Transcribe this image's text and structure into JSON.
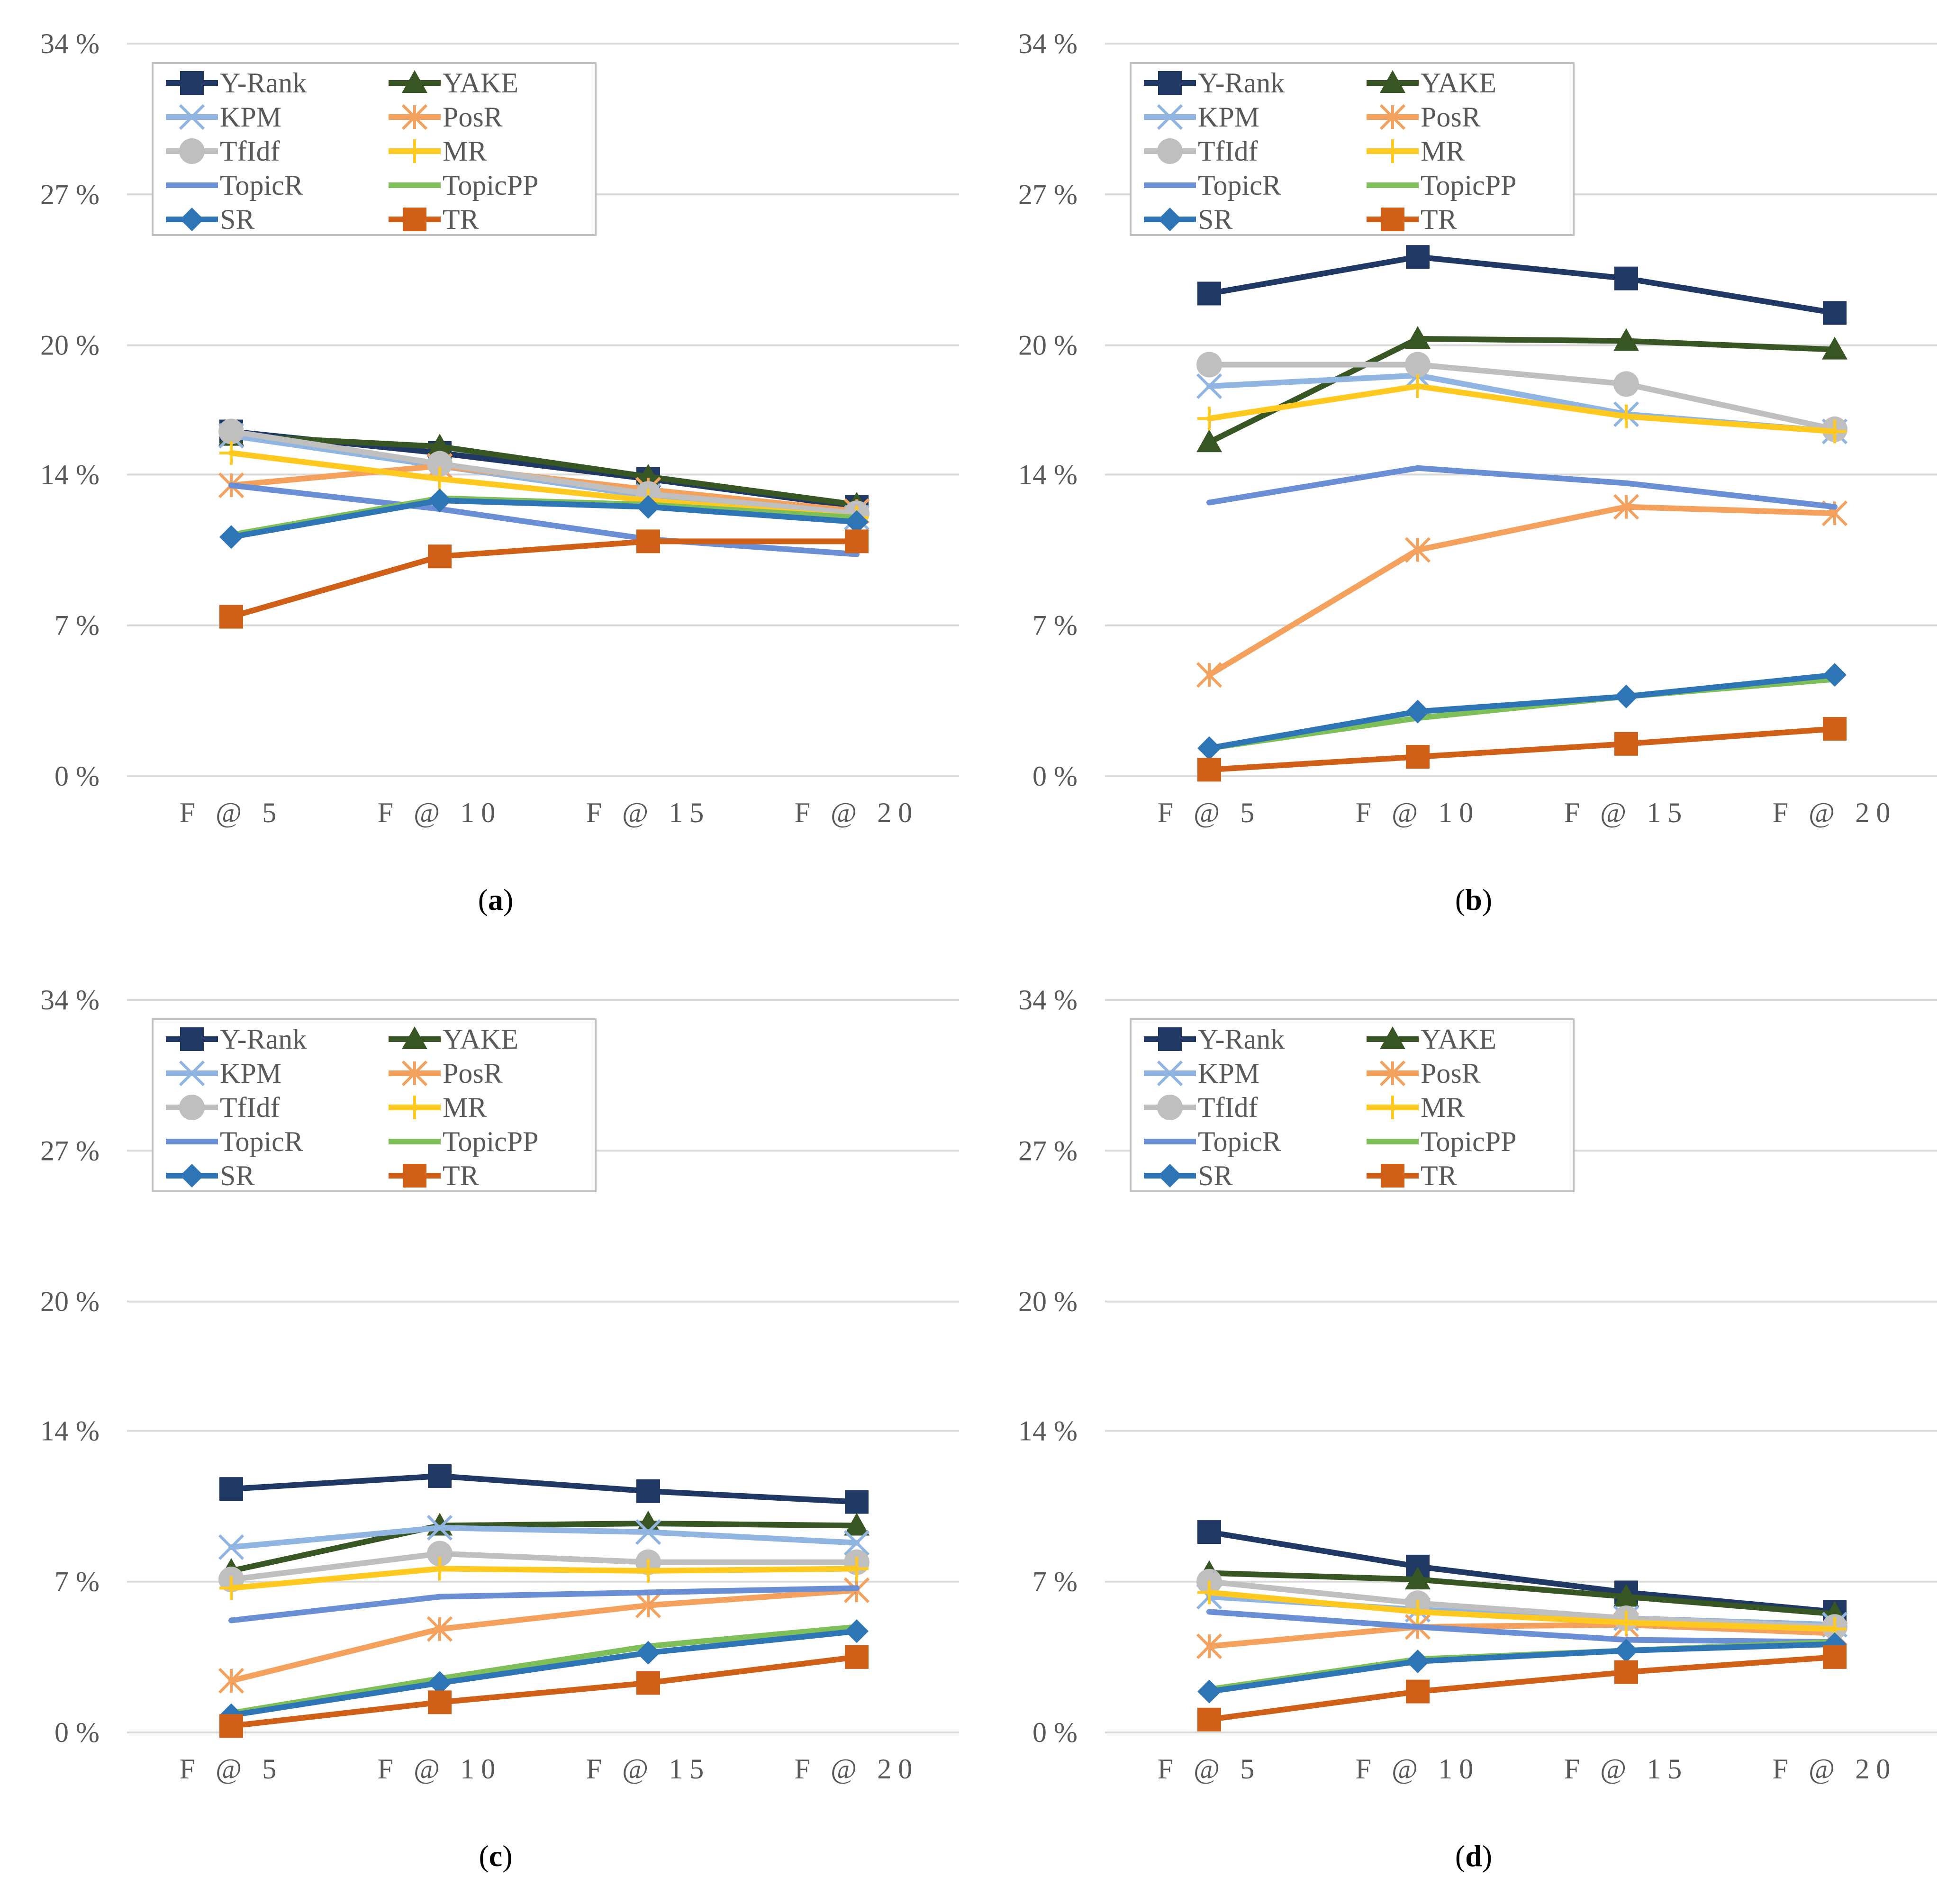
{
  "colors": {
    "Y-Rank": "#203864",
    "YAKE": "#375623",
    "KPM": "#8fb5e0",
    "PosR": "#f4a15d",
    "TfIdf": "#bfbfbf",
    "MR": "#ffc91f",
    "TopicR": "#6b8fd4",
    "TopicPP": "#7fbf5a",
    "SR": "#2e75b6",
    "TR": "#d06018",
    "grid": "#d9d9d9",
    "axis_text": "#595959"
  },
  "chart_data": [
    {
      "type": "line",
      "caption_letter": "a",
      "caption_open": "(",
      "caption_close": ")",
      "categories": [
        "F @ 5",
        "F @ 10",
        "F @ 15",
        "F @ 20"
      ],
      "ylim": [
        0,
        34
      ],
      "yticks": [
        0,
        7,
        14,
        20,
        27,
        34
      ],
      "ytick_labels": [
        "0 %",
        "7 %",
        "14 %",
        "20 %",
        "27 %",
        "34 %"
      ],
      "legend": [
        "Y-Rank",
        "YAKE",
        "KPM",
        "PosR",
        "TfIdf",
        "MR",
        "TopicR",
        "TopicPP",
        "SR",
        "TR"
      ],
      "series": [
        {
          "name": "Y-Rank",
          "marker": "square",
          "values": [
            16.0,
            15.0,
            13.8,
            12.5
          ]
        },
        {
          "name": "YAKE",
          "marker": "triangle",
          "values": [
            15.8,
            15.3,
            13.9,
            12.6
          ]
        },
        {
          "name": "KPM",
          "marker": "x",
          "values": [
            15.8,
            14.4,
            13.0,
            12.0
          ]
        },
        {
          "name": "PosR",
          "marker": "asterisk",
          "values": [
            13.5,
            14.4,
            13.3,
            12.3
          ]
        },
        {
          "name": "TfIdf",
          "marker": "circle",
          "values": [
            16.0,
            14.5,
            13.1,
            12.2
          ]
        },
        {
          "name": "MR",
          "marker": "plus",
          "values": [
            15.0,
            13.8,
            12.8,
            12.0
          ]
        },
        {
          "name": "TopicR",
          "marker": "dash",
          "values": [
            13.5,
            12.4,
            11.0,
            10.3
          ]
        },
        {
          "name": "TopicPP",
          "marker": "dash",
          "values": [
            11.2,
            12.9,
            12.6,
            12.0
          ]
        },
        {
          "name": "SR",
          "marker": "diamond",
          "values": [
            11.1,
            12.8,
            12.5,
            11.8
          ]
        },
        {
          "name": "TR",
          "marker": "square",
          "values": [
            7.4,
            10.2,
            10.9,
            10.9
          ]
        }
      ]
    },
    {
      "type": "line",
      "caption_letter": "b",
      "caption_open": "(",
      "caption_close": ")",
      "categories": [
        "F @ 5",
        "F @ 10",
        "F @ 15",
        "F @ 20"
      ],
      "ylim": [
        0,
        34
      ],
      "yticks": [
        0,
        7,
        14,
        20,
        27,
        34
      ],
      "ytick_labels": [
        "0 %",
        "7 %",
        "14 %",
        "20 %",
        "27 %",
        "34 %"
      ],
      "legend": [
        "Y-Rank",
        "YAKE",
        "KPM",
        "PosR",
        "TfIdf",
        "MR",
        "TopicR",
        "TopicPP",
        "SR",
        "TR"
      ],
      "series": [
        {
          "name": "Y-Rank",
          "marker": "square",
          "values": [
            22.4,
            24.1,
            23.1,
            21.5
          ]
        },
        {
          "name": "YAKE",
          "marker": "triangle",
          "values": [
            15.5,
            20.3,
            20.2,
            19.8
          ]
        },
        {
          "name": "KPM",
          "marker": "x",
          "values": [
            18.1,
            18.6,
            16.8,
            16.0
          ]
        },
        {
          "name": "PosR",
          "marker": "asterisk",
          "values": [
            4.7,
            10.5,
            12.5,
            12.2
          ]
        },
        {
          "name": "TfIdf",
          "marker": "circle",
          "values": [
            19.1,
            19.1,
            18.2,
            16.1
          ]
        },
        {
          "name": "MR",
          "marker": "plus",
          "values": [
            16.6,
            18.1,
            16.7,
            16.0
          ]
        },
        {
          "name": "TopicR",
          "marker": "dash",
          "values": [
            12.7,
            14.3,
            13.6,
            12.5
          ]
        },
        {
          "name": "TopicPP",
          "marker": "dash",
          "values": [
            1.3,
            2.7,
            3.7,
            4.5
          ]
        },
        {
          "name": "SR",
          "marker": "diamond",
          "values": [
            1.3,
            3.0,
            3.7,
            4.7
          ]
        },
        {
          "name": "TR",
          "marker": "square",
          "values": [
            0.3,
            0.9,
            1.5,
            2.2
          ]
        }
      ]
    },
    {
      "type": "line",
      "caption_letter": "c",
      "caption_open": "(",
      "caption_close": ")",
      "categories": [
        "F @ 5",
        "F @ 10",
        "F @ 15",
        "F @ 20"
      ],
      "ylim": [
        0,
        34
      ],
      "yticks": [
        0,
        7,
        14,
        20,
        27,
        34
      ],
      "ytick_labels": [
        "0 %",
        "7 %",
        "14 %",
        "20 %",
        "27 %",
        "34 %"
      ],
      "legend": [
        "Y-Rank",
        "YAKE",
        "KPM",
        "PosR",
        "TfIdf",
        "MR",
        "TopicR",
        "TopicPP",
        "SR",
        "TR"
      ],
      "series": [
        {
          "name": "Y-Rank",
          "marker": "square",
          "values": [
            11.3,
            11.9,
            11.2,
            10.7
          ]
        },
        {
          "name": "YAKE",
          "marker": "triangle",
          "values": [
            7.5,
            9.6,
            9.7,
            9.6
          ]
        },
        {
          "name": "KPM",
          "marker": "x",
          "values": [
            8.6,
            9.5,
            9.3,
            8.8
          ]
        },
        {
          "name": "PosR",
          "marker": "asterisk",
          "values": [
            2.4,
            4.8,
            5.9,
            6.6
          ]
        },
        {
          "name": "TfIdf",
          "marker": "circle",
          "values": [
            7.1,
            8.3,
            7.9,
            7.9
          ]
        },
        {
          "name": "MR",
          "marker": "plus",
          "values": [
            6.7,
            7.6,
            7.5,
            7.6
          ]
        },
        {
          "name": "TopicR",
          "marker": "dash",
          "values": [
            5.2,
            6.3,
            6.5,
            6.7
          ]
        },
        {
          "name": "TopicPP",
          "marker": "dash",
          "values": [
            0.9,
            2.5,
            4.0,
            4.9
          ]
        },
        {
          "name": "SR",
          "marker": "diamond",
          "values": [
            0.8,
            2.3,
            3.7,
            4.7
          ]
        },
        {
          "name": "TR",
          "marker": "square",
          "values": [
            0.3,
            1.4,
            2.3,
            3.5
          ]
        }
      ]
    },
    {
      "type": "line",
      "caption_letter": "d",
      "caption_open": "(",
      "caption_close": ")",
      "categories": [
        "F @ 5",
        "F @ 10",
        "F @ 15",
        "F @ 20"
      ],
      "ylim": [
        0,
        34
      ],
      "yticks": [
        0,
        7,
        14,
        20,
        27,
        34
      ],
      "ytick_labels": [
        "0 %",
        "7 %",
        "14 %",
        "20 %",
        "27 %",
        "34 %"
      ],
      "legend": [
        "Y-Rank",
        "YAKE",
        "KPM",
        "PosR",
        "TfIdf",
        "MR",
        "TopicR",
        "TopicPP",
        "SR",
        "TR"
      ],
      "series": [
        {
          "name": "Y-Rank",
          "marker": "square",
          "values": [
            9.3,
            7.7,
            6.5,
            5.6
          ]
        },
        {
          "name": "YAKE",
          "marker": "triangle",
          "values": [
            7.4,
            7.1,
            6.3,
            5.5
          ]
        },
        {
          "name": "KPM",
          "marker": "x",
          "values": [
            6.3,
            5.7,
            5.3,
            5.0
          ]
        },
        {
          "name": "PosR",
          "marker": "asterisk",
          "values": [
            4.0,
            4.9,
            5.0,
            4.6
          ]
        },
        {
          "name": "TfIdf",
          "marker": "circle",
          "values": [
            7.0,
            6.0,
            5.3,
            4.9
          ]
        },
        {
          "name": "MR",
          "marker": "plus",
          "values": [
            6.5,
            5.6,
            5.1,
            4.8
          ]
        },
        {
          "name": "TopicR",
          "marker": "dash",
          "values": [
            5.6,
            4.9,
            4.3,
            4.2
          ]
        },
        {
          "name": "TopicPP",
          "marker": "dash",
          "values": [
            2.0,
            3.4,
            3.8,
            4.2
          ]
        },
        {
          "name": "SR",
          "marker": "diamond",
          "values": [
            1.9,
            3.3,
            3.8,
            4.1
          ]
        },
        {
          "name": "TR",
          "marker": "square",
          "values": [
            0.6,
            1.9,
            2.8,
            3.5
          ]
        }
      ]
    }
  ]
}
